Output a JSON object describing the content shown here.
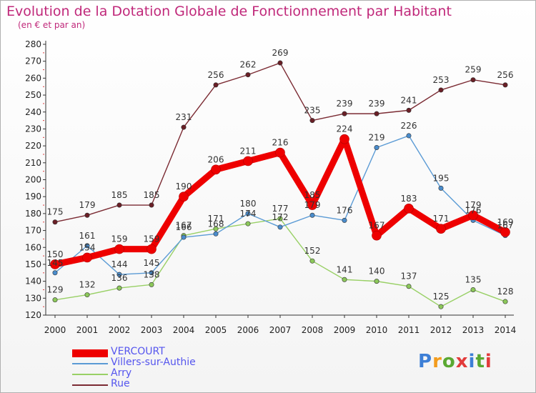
{
  "title": "Evolution de la Dotation Globale de Fonctionnement par Habitant",
  "subtitle": "(en € et par an)",
  "logo": {
    "text": "Proxiti",
    "colors": [
      "#3d7fd6",
      "#f39c1d",
      "#5aa832",
      "#e23b3b",
      "#3d7fd6",
      "#5aa832",
      "#e23b3b"
    ]
  },
  "chart_data": {
    "type": "line",
    "title": "Evolution de la Dotation Globale de Fonctionnement par Habitant",
    "subtitle": "(en € et par an)",
    "x": [
      "2000",
      "2001",
      "2002",
      "2003",
      "2004",
      "2005",
      "2006",
      "2007",
      "2008",
      "2009",
      "2010",
      "2011",
      "2012",
      "2013",
      "2014"
    ],
    "ylim": [
      120,
      280
    ],
    "yticks": [
      120,
      130,
      140,
      150,
      160,
      170,
      180,
      190,
      200,
      210,
      220,
      230,
      240,
      250,
      260,
      270,
      280
    ],
    "grid": false,
    "legend_position": "bottom-left",
    "series": [
      {
        "name": "VERCOURT",
        "color": "#ee0000",
        "values": [
          150,
          154,
          159,
          159,
          190,
          206,
          211,
          216,
          185,
          224,
          167,
          183,
          171,
          179,
          169
        ]
      },
      {
        "name": "Villers-sur-Authie",
        "color": "#5b9bd5",
        "values": [
          145,
          161,
          144,
          145,
          166,
          168,
          180,
          172,
          179,
          176,
          219,
          226,
          195,
          176,
          167
        ]
      },
      {
        "name": "Arry",
        "color": "#99d066",
        "values": [
          129,
          132,
          136,
          138,
          167,
          171,
          174,
          177,
          152,
          141,
          140,
          137,
          125,
          135,
          128
        ]
      },
      {
        "name": "Rue",
        "color": "#7b2b33",
        "values": [
          175,
          179,
          185,
          185,
          231,
          256,
          262,
          269,
          235,
          239,
          239,
          241,
          253,
          259,
          256
        ]
      }
    ]
  }
}
